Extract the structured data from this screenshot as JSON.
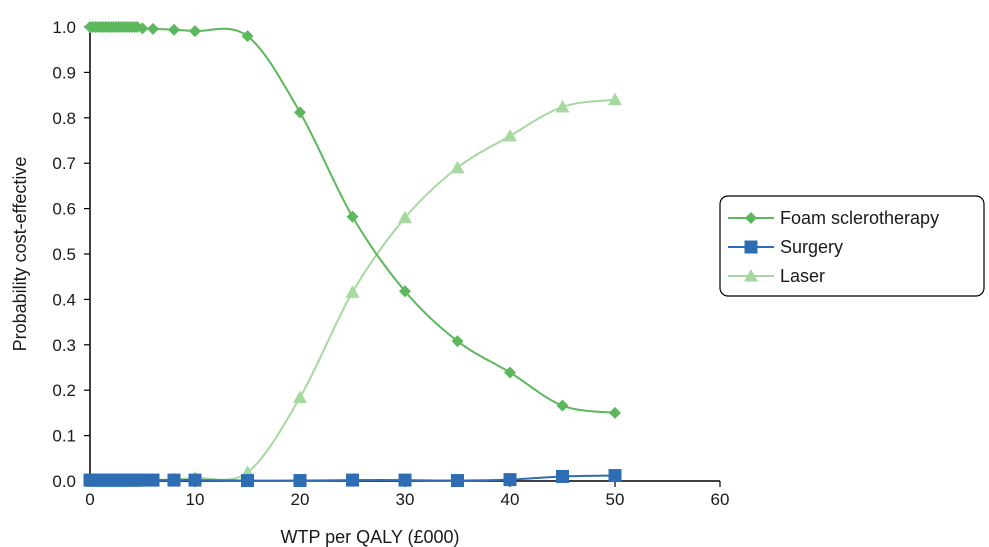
{
  "chart_data": {
    "type": "line",
    "title": "",
    "xlabel": "WTP per QALY (£000)",
    "ylabel": "Probability cost-effective",
    "xlim": [
      0,
      60
    ],
    "ylim": [
      0,
      1.0
    ],
    "xticks": [
      "0",
      "10",
      "20",
      "30",
      "40",
      "50",
      "60"
    ],
    "yticks": [
      "0.0",
      "0.1",
      "0.2",
      "0.3",
      "0.4",
      "0.5",
      "0.6",
      "0.7",
      "0.8",
      "0.9",
      "1.0"
    ],
    "grid": false,
    "legend_position": "right",
    "x": [
      0,
      0.25,
      0.5,
      0.75,
      1,
      1.25,
      1.5,
      1.75,
      2,
      2.25,
      2.5,
      2.75,
      3,
      3.25,
      3.5,
      3.75,
      4,
      4.25,
      4.5,
      5,
      6,
      8,
      10,
      15,
      20,
      25,
      30,
      35,
      40,
      45,
      50
    ],
    "series": [
      {
        "name": "Foam sclerotherapy",
        "color": "#5cb85c",
        "marker": "diamond",
        "values": [
          1.0,
          1.0,
          1.0,
          1.0,
          1.0,
          1.0,
          1.0,
          1.0,
          1.0,
          1.0,
          1.0,
          1.0,
          1.0,
          1.0,
          1.0,
          1.0,
          1.0,
          1.0,
          1.0,
          0.997,
          0.996,
          0.994,
          0.991,
          0.98,
          0.812,
          0.582,
          0.418,
          0.308,
          0.239,
          0.166,
          0.15
        ]
      },
      {
        "name": "Surgery",
        "color": "#2e6db4",
        "marker": "square",
        "values": [
          0.002,
          0.002,
          0.002,
          0.002,
          0.002,
          0.002,
          0.002,
          0.002,
          0.002,
          0.002,
          0.002,
          0.002,
          0.002,
          0.002,
          0.002,
          0.002,
          0.002,
          0.002,
          0.002,
          0.002,
          0.002,
          0.002,
          0.002,
          0.001,
          0.001,
          0.002,
          0.002,
          0.001,
          0.003,
          0.01,
          0.012
        ]
      },
      {
        "name": "Laser",
        "color": "#a6d9a0",
        "marker": "triangle",
        "values": [
          0.0,
          0.0,
          0.0,
          0.0,
          0.0,
          0.0,
          0.0,
          0.0,
          0.0,
          0.0,
          0.0,
          0.0,
          0.0,
          0.0,
          0.0,
          0.0,
          0.0,
          0.0,
          0.0,
          0.001,
          0.002,
          0.004,
          0.007,
          0.019,
          0.184,
          0.416,
          0.58,
          0.69,
          0.76,
          0.824,
          0.84
        ]
      }
    ]
  }
}
